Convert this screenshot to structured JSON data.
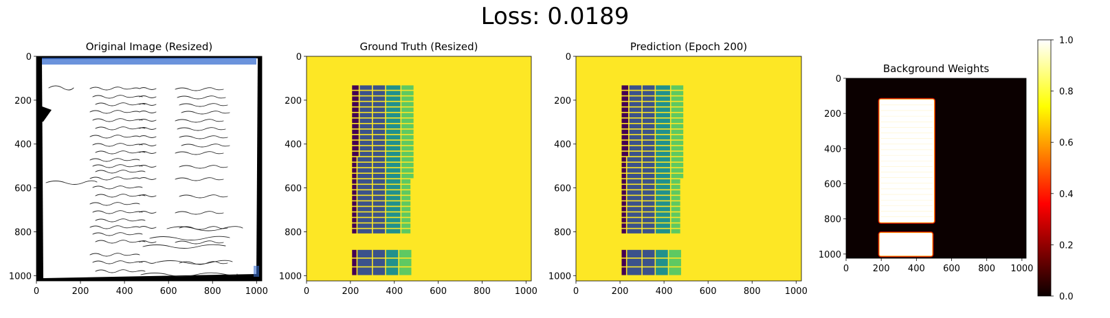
{
  "suptitle": "Loss: 0.0189",
  "colors": {
    "gt_background": "#fde725",
    "viridis_low": "#440154",
    "viridis_mid": "#3b528b",
    "viridis_teal": "#21918c",
    "viridis_green": "#5ec962",
    "hot_low": "#0b0000",
    "hot_high": "#ffffff"
  },
  "chart_data": [
    {
      "type": "heatmap",
      "title": "Original Image (Resized)",
      "content": "scanned handwritten ledger page",
      "xlim": [
        0,
        1024
      ],
      "ylim": [
        1024,
        0
      ],
      "xticks": [
        0,
        200,
        400,
        600,
        800,
        1000
      ],
      "yticks": [
        0,
        200,
        400,
        600,
        800,
        1000
      ]
    },
    {
      "type": "heatmap",
      "title": "Ground Truth (Resized)",
      "colormap": "viridis",
      "xlim": [
        0,
        1024
      ],
      "ylim": [
        1024,
        0
      ],
      "xticks": [
        0,
        200,
        400,
        600,
        800,
        1000
      ],
      "yticks": [
        0,
        200,
        400,
        600,
        800,
        1000
      ],
      "table_region": {
        "x": [
          205,
          490
        ],
        "y": [
          130,
          810
        ]
      },
      "second_region": {
        "x": [
          205,
          480
        ],
        "y": [
          880,
          1000
        ]
      }
    },
    {
      "type": "heatmap",
      "title": "Prediction (Epoch 200)",
      "colormap": "viridis",
      "xlim": [
        0,
        1024
      ],
      "ylim": [
        1024,
        0
      ],
      "xticks": [
        0,
        200,
        400,
        600,
        800,
        1000
      ],
      "yticks": [
        0,
        200,
        400,
        600,
        800,
        1000
      ],
      "table_region": {
        "x": [
          205,
          490
        ],
        "y": [
          130,
          810
        ]
      },
      "second_region": {
        "x": [
          205,
          480
        ],
        "y": [
          880,
          1000
        ]
      }
    },
    {
      "type": "heatmap",
      "title": "Background Weights",
      "colormap": "hot",
      "xlim": [
        0,
        1024
      ],
      "ylim": [
        1024,
        0
      ],
      "xticks": [
        0,
        200,
        400,
        600,
        800,
        1000
      ],
      "yticks": [
        0,
        200,
        400,
        600,
        800,
        1000
      ],
      "high_regions": [
        {
          "x": [
            190,
            500
          ],
          "y": [
            120,
            820
          ]
        },
        {
          "x": [
            190,
            490
          ],
          "y": [
            880,
            1010
          ]
        }
      ],
      "colorbar": {
        "range": [
          0.0,
          1.0
        ],
        "ticks": [
          0.0,
          0.2,
          0.4,
          0.6,
          0.8,
          1.0
        ]
      }
    }
  ]
}
